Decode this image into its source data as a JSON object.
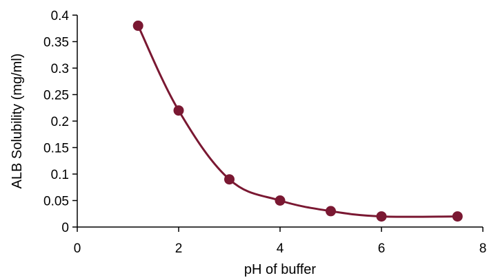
{
  "chart_data": {
    "type": "line",
    "title": "",
    "xlabel": "pH of buffer",
    "ylabel": "ALB Solubility (mg/ml)",
    "xlim": [
      0,
      8
    ],
    "ylim": [
      0,
      0.4
    ],
    "x_ticks": [
      0,
      2,
      4,
      6,
      8
    ],
    "x_tick_labels": [
      "0",
      "2",
      "4",
      "6",
      "8"
    ],
    "y_ticks": [
      0,
      0.05,
      0.1,
      0.15,
      0.2,
      0.25,
      0.3,
      0.35,
      0.4
    ],
    "y_tick_labels": [
      "0",
      "0.05",
      "0.1",
      "0.15",
      "0.2",
      "0.25",
      "0.3",
      "0.35",
      "0.4"
    ],
    "grid": false,
    "legend": "none",
    "smooth": true,
    "series": [
      {
        "color": "#7a1832",
        "marker": "circle",
        "points": [
          {
            "x": 1.2,
            "y": 0.38
          },
          {
            "x": 2,
            "y": 0.22
          },
          {
            "x": 3,
            "y": 0.09
          },
          {
            "x": 4,
            "y": 0.05
          },
          {
            "x": 5,
            "y": 0.03
          },
          {
            "x": 6,
            "y": 0.02
          },
          {
            "x": 7.5,
            "y": 0.02
          }
        ]
      }
    ]
  }
}
